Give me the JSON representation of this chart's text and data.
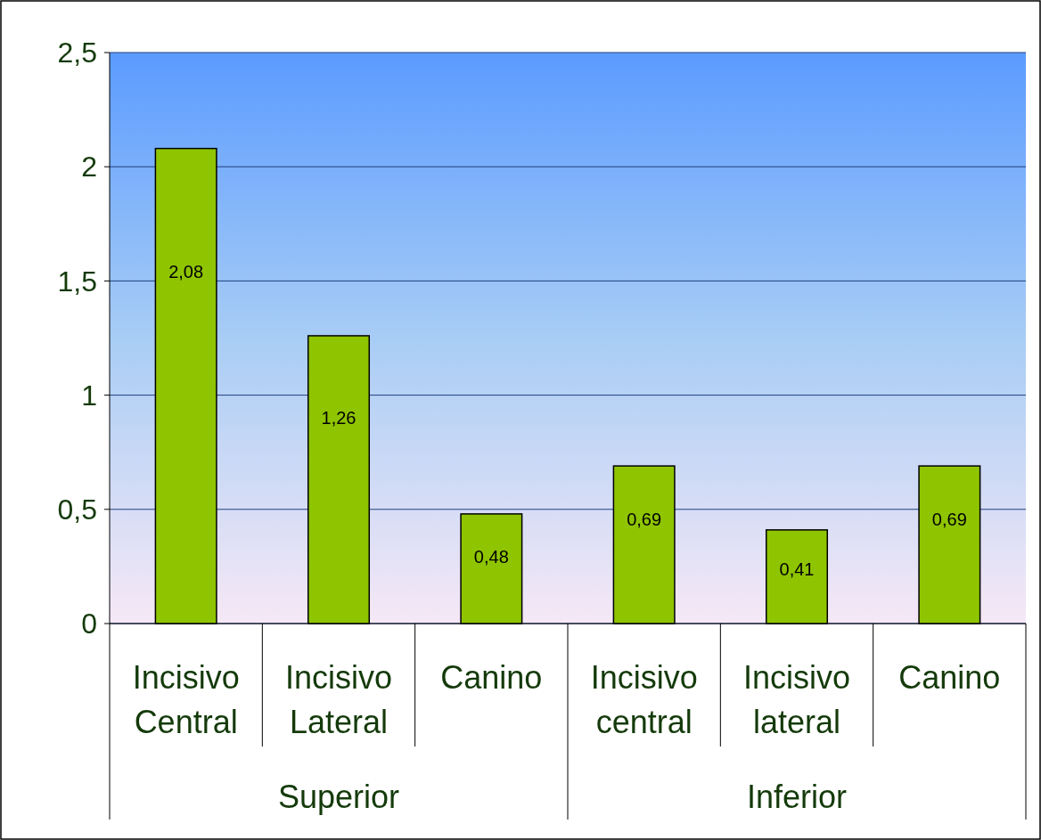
{
  "chart_data": {
    "type": "bar",
    "categories": [
      "Incisivo Central",
      "Incisivo Lateral",
      "Canino",
      "Incisivo central",
      "Incisivo lateral",
      "Canino"
    ],
    "values": [
      2.08,
      1.26,
      0.48,
      0.69,
      0.41,
      0.69
    ],
    "value_labels": [
      "2,08",
      "1,26",
      "0,48",
      "0,69",
      "0,41",
      "0,69"
    ],
    "color": "#8fc400",
    "ylim": [
      0,
      2.5
    ],
    "yticks": [
      0,
      {
        "value": 0.5,
        "label": "0,5"
      },
      1,
      {
        "value": 1.5,
        "label": "1,5"
      },
      2,
      {
        "value": 2.5,
        "label": "2,5"
      }
    ],
    "grid": "y",
    "annotations": [
      "Superior",
      "Inferior"
    ]
  }
}
